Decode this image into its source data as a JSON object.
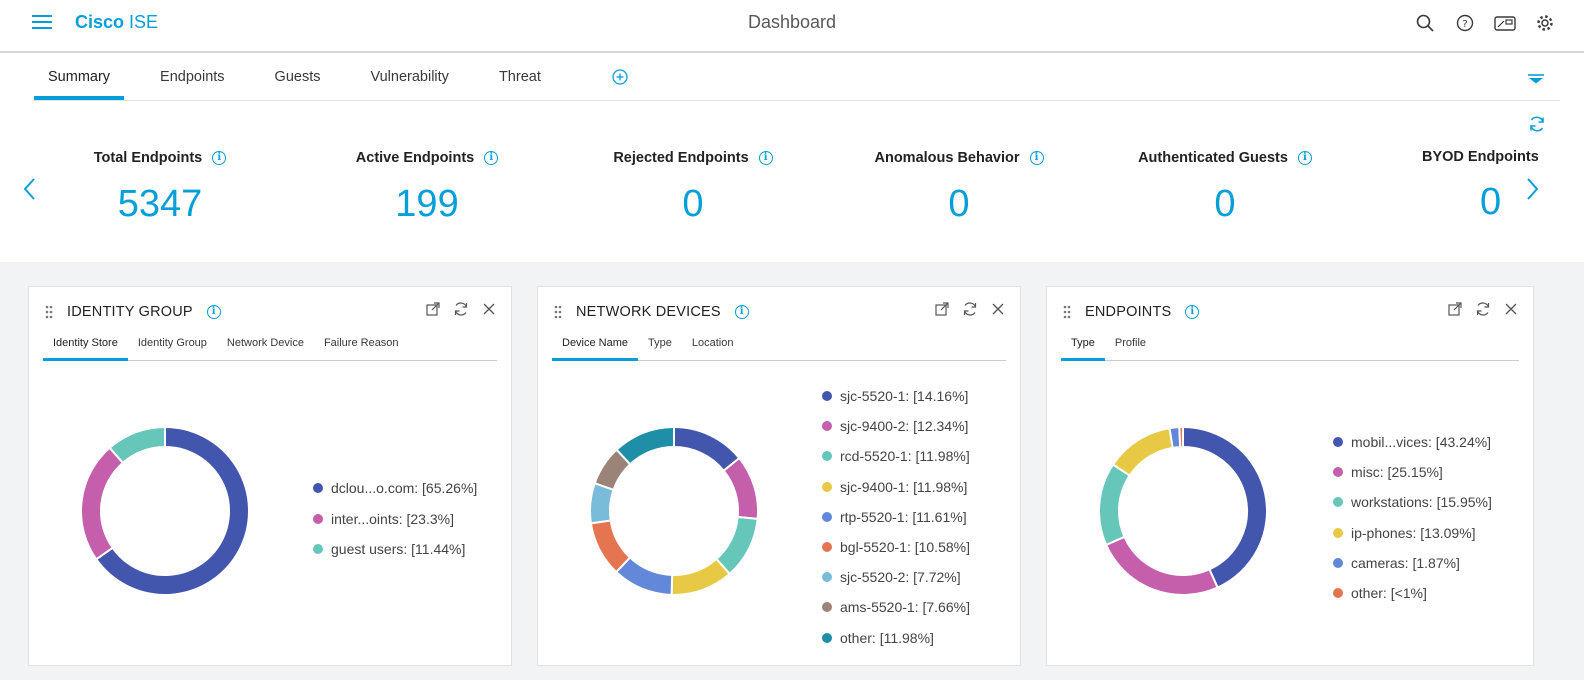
{
  "header": {
    "brand_a": "Cisco",
    "brand_b": "ISE",
    "title": "Dashboard"
  },
  "tabs": [
    "Summary",
    "Endpoints",
    "Guests",
    "Vulnerability",
    "Threat"
  ],
  "metrics": [
    {
      "label": "Total Endpoints",
      "value": "5347"
    },
    {
      "label": "Active Endpoints",
      "value": "199"
    },
    {
      "label": "Rejected Endpoints",
      "value": "0"
    },
    {
      "label": "Anomalous Behavior",
      "value": "0"
    },
    {
      "label": "Authenticated Guests",
      "value": "0"
    },
    {
      "label": "BYOD Endpoints",
      "value": "0"
    }
  ],
  "dashlets": [
    {
      "title": "IDENTITY GROUP",
      "tabs": [
        "Identity Store",
        "Identity Group",
        "Network Device",
        "Failure Reason"
      ],
      "legend": [
        {
          "label": "dclou...o.com: [65.26%]",
          "value": 65.26,
          "color": "#4356ae"
        },
        {
          "label": "inter...oints: [23.3%]",
          "value": 23.3,
          "color": "#c55eab"
        },
        {
          "label": "guest users: [11.44%]",
          "value": 11.44,
          "color": "#66c6b9"
        }
      ]
    },
    {
      "title": "NETWORK DEVICES",
      "tabs": [
        "Device Name",
        "Type",
        "Location"
      ],
      "legend": [
        {
          "label": "sjc-5520-1: [14.16%]",
          "value": 14.16,
          "color": "#4356ae"
        },
        {
          "label": "sjc-9400-2: [12.34%]",
          "value": 12.34,
          "color": "#c55eab"
        },
        {
          "label": "rcd-5520-1: [11.98%]",
          "value": 11.98,
          "color": "#66c6b9"
        },
        {
          "label": "sjc-9400-1: [11.98%]",
          "value": 11.98,
          "color": "#e8c945"
        },
        {
          "label": "rtp-5520-1: [11.61%]",
          "value": 11.61,
          "color": "#6387d9"
        },
        {
          "label": "bgl-5520-1: [10.58%]",
          "value": 10.58,
          "color": "#e57450"
        },
        {
          "label": "sjc-5520-2: [7.72%]",
          "value": 7.72,
          "color": "#79bcd9"
        },
        {
          "label": "ams-5520-1: [7.66%]",
          "value": 7.66,
          "color": "#9c8377"
        },
        {
          "label": "other: [11.98%]",
          "value": 11.98,
          "color": "#1f8fa8"
        }
      ]
    },
    {
      "title": "ENDPOINTS",
      "tabs": [
        "Type",
        "Profile"
      ],
      "legend": [
        {
          "label": "mobil...vices: [43.24%]",
          "value": 43.24,
          "color": "#4356ae"
        },
        {
          "label": "misc: [25.15%]",
          "value": 25.15,
          "color": "#c55eab"
        },
        {
          "label": "workstations: [15.95%]",
          "value": 15.95,
          "color": "#66c6b9"
        },
        {
          "label": "ip-phones: [13.09%]",
          "value": 13.09,
          "color": "#e8c945"
        },
        {
          "label": "cameras: [1.87%]",
          "value": 1.87,
          "color": "#6387d9"
        },
        {
          "label": "other: [<1%]",
          "value": 0.7,
          "color": "#e57450"
        }
      ]
    }
  ]
}
